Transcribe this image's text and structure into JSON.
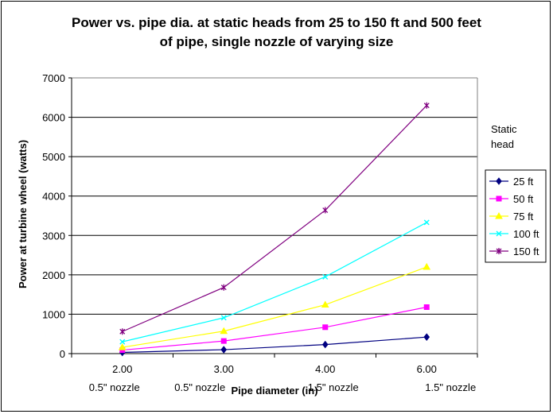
{
  "chart_data": {
    "type": "line",
    "title_lines": [
      "Power vs. pipe dia. at static heads from 25 to 150 ft and 500 feet",
      "of pipe, single nozzle of varying size"
    ],
    "xlabel": "Pipe diameter (in)",
    "ylabel": "Power at turbine wheel (watts)",
    "categories": [
      "2.00",
      "3.00",
      "4.00",
      "6.00"
    ],
    "category_notes": [
      "0.5\" nozzle",
      "0.5\" nozzle",
      "1.5\" nozzle",
      "1.5\" nozzle"
    ],
    "ylim": [
      0,
      7000
    ],
    "yticks": [
      0,
      1000,
      2000,
      3000,
      4000,
      5000,
      6000,
      7000
    ],
    "grid": true,
    "legend_title": [
      "Static",
      "head"
    ],
    "legend_position": "right",
    "series": [
      {
        "name": "25 ft",
        "values": [
          30,
          100,
          230,
          420
        ],
        "color": "#000080",
        "marker": "diamond"
      },
      {
        "name": "50 ft",
        "values": [
          90,
          320,
          670,
          1180
        ],
        "color": "#ff00ff",
        "marker": "square"
      },
      {
        "name": "75 ft",
        "values": [
          160,
          570,
          1240,
          2200
        ],
        "color": "#ffff00",
        "marker": "triangle"
      },
      {
        "name": "100 ft",
        "values": [
          300,
          910,
          1950,
          3330
        ],
        "color": "#00ffff",
        "marker": "x"
      },
      {
        "name": "150 ft",
        "values": [
          560,
          1680,
          3640,
          6300
        ],
        "color": "#800080",
        "marker": "star"
      }
    ]
  }
}
